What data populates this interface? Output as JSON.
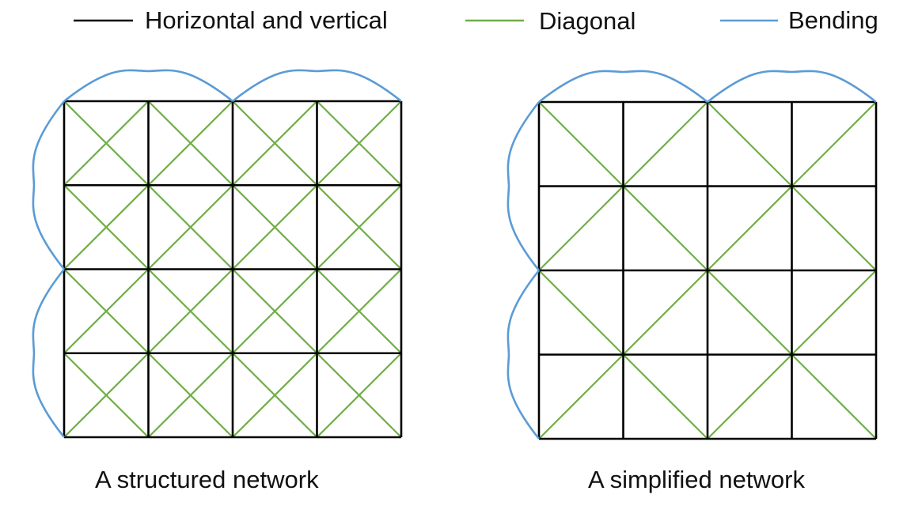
{
  "colors": {
    "horizontal_vertical": "#000000",
    "diagonal": "#70ad47",
    "bending": "#5b9bd5",
    "background": "#ffffff"
  },
  "legend": [
    {
      "label": "Horizontal and vertical",
      "color": "#000000"
    },
    {
      "label": "Diagonal",
      "color": "#70ad47"
    },
    {
      "label": "Bending",
      "color": "#5b9bd5"
    }
  ],
  "networks": [
    {
      "caption": "A structured network",
      "grid_rows": 4,
      "grid_cols": 4,
      "diagonal_pattern": "every-cell-both-diagonals"
    },
    {
      "caption": "A simplified network",
      "grid_rows": 4,
      "grid_cols": 4,
      "diagonal_pattern": "2x2-blocks-both-diagonals"
    }
  ]
}
